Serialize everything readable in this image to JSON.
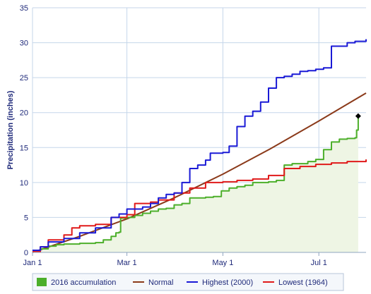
{
  "chart_data": {
    "type": "line",
    "title": "",
    "xlabel": "",
    "ylabel": "Precipitation (inches)",
    "x_ticks": [
      "Jan 1",
      "Mar 1",
      "May 1",
      "Jul 1"
    ],
    "x_tick_days": [
      0,
      60,
      121,
      182
    ],
    "xlim_days": [
      0,
      212
    ],
    "ylim": [
      0,
      35
    ],
    "y_ticks": [
      0,
      5,
      10,
      15,
      20,
      25,
      30,
      35
    ],
    "grid": true,
    "legend_position": "bottom",
    "series": [
      {
        "name": "2016 accumulation",
        "color": "#4caf2a",
        "fill": "#eef5e4",
        "style": "area",
        "points": [
          [
            0,
            0.2
          ],
          [
            5,
            0.5
          ],
          [
            10,
            0.9
          ],
          [
            15,
            1.1
          ],
          [
            20,
            1.2
          ],
          [
            30,
            1.3
          ],
          [
            40,
            1.4
          ],
          [
            45,
            1.8
          ],
          [
            50,
            2.3
          ],
          [
            53,
            2.8
          ],
          [
            55,
            2.9
          ],
          [
            56,
            4.9
          ],
          [
            60,
            5.0
          ],
          [
            65,
            5.3
          ],
          [
            70,
            5.6
          ],
          [
            75,
            5.9
          ],
          [
            80,
            6.2
          ],
          [
            85,
            6.3
          ],
          [
            90,
            6.8
          ],
          [
            95,
            7.0
          ],
          [
            100,
            7.8
          ],
          [
            110,
            7.9
          ],
          [
            115,
            8.0
          ],
          [
            120,
            8.8
          ],
          [
            125,
            9.2
          ],
          [
            130,
            9.4
          ],
          [
            135,
            9.6
          ],
          [
            140,
            10.0
          ],
          [
            150,
            10.1
          ],
          [
            155,
            10.3
          ],
          [
            160,
            12.5
          ],
          [
            165,
            12.7
          ],
          [
            175,
            13.0
          ],
          [
            180,
            13.3
          ],
          [
            185,
            14.7
          ],
          [
            190,
            15.8
          ],
          [
            195,
            16.2
          ],
          [
            200,
            16.3
          ],
          [
            205,
            16.4
          ],
          [
            206,
            17.5
          ],
          [
            207,
            19.5
          ]
        ],
        "end_marker": true
      },
      {
        "name": "Normal",
        "color": "#8b3a1a",
        "style": "line",
        "points": [
          [
            0,
            0
          ],
          [
            30,
            2.3
          ],
          [
            60,
            4.8
          ],
          [
            90,
            7.8
          ],
          [
            121,
            11.2
          ],
          [
            151,
            14.8
          ],
          [
            182,
            18.8
          ],
          [
            212,
            22.8
          ]
        ]
      },
      {
        "name": "Highest (2000)",
        "color": "#1a1ad6",
        "style": "line",
        "points": [
          [
            0,
            0.3
          ],
          [
            5,
            0.8
          ],
          [
            10,
            1.5
          ],
          [
            20,
            2.0
          ],
          [
            30,
            2.8
          ],
          [
            40,
            3.5
          ],
          [
            50,
            5.0
          ],
          [
            55,
            5.5
          ],
          [
            60,
            6.2
          ],
          [
            70,
            6.5
          ],
          [
            75,
            7.0
          ],
          [
            80,
            7.8
          ],
          [
            85,
            8.3
          ],
          [
            90,
            8.5
          ],
          [
            95,
            10.0
          ],
          [
            100,
            12.0
          ],
          [
            105,
            12.5
          ],
          [
            110,
            13.2
          ],
          [
            113,
            14.2
          ],
          [
            121,
            14.3
          ],
          [
            125,
            15.2
          ],
          [
            130,
            18.0
          ],
          [
            135,
            19.5
          ],
          [
            140,
            20.2
          ],
          [
            145,
            21.5
          ],
          [
            150,
            23.5
          ],
          [
            155,
            25.0
          ],
          [
            160,
            25.2
          ],
          [
            165,
            25.5
          ],
          [
            170,
            25.9
          ],
          [
            175,
            26.0
          ],
          [
            180,
            26.2
          ],
          [
            185,
            26.4
          ],
          [
            190,
            29.5
          ],
          [
            200,
            30.0
          ],
          [
            205,
            30.2
          ],
          [
            212,
            30.5
          ]
        ]
      },
      {
        "name": "Lowest (1964)",
        "color": "#e01a1a",
        "style": "line",
        "points": [
          [
            0,
            0.1
          ],
          [
            5,
            0.8
          ],
          [
            10,
            1.8
          ],
          [
            20,
            2.5
          ],
          [
            25,
            3.5
          ],
          [
            30,
            3.8
          ],
          [
            40,
            4.0
          ],
          [
            50,
            5.0
          ],
          [
            60,
            5.4
          ],
          [
            65,
            7.0
          ],
          [
            75,
            7.2
          ],
          [
            80,
            7.5
          ],
          [
            90,
            8.5
          ],
          [
            100,
            9.2
          ],
          [
            110,
            10.0
          ],
          [
            121,
            10.1
          ],
          [
            130,
            10.3
          ],
          [
            140,
            10.5
          ],
          [
            150,
            11.0
          ],
          [
            160,
            12.0
          ],
          [
            170,
            12.3
          ],
          [
            180,
            12.6
          ],
          [
            190,
            12.8
          ],
          [
            200,
            13.0
          ],
          [
            212,
            13.3
          ]
        ]
      }
    ]
  }
}
